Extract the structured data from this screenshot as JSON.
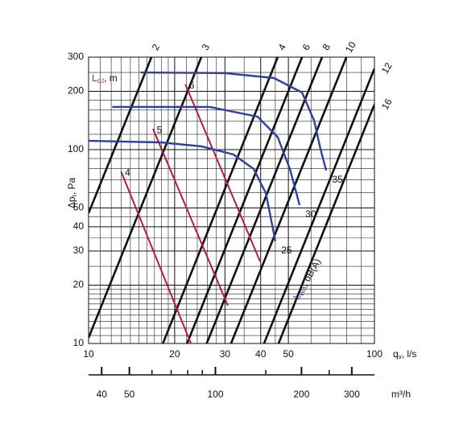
{
  "chart_data": {
    "type": "line",
    "log_x": true,
    "log_y": true,
    "grid": true,
    "xlim": [
      10,
      100
    ],
    "ylim": [
      10,
      300
    ],
    "xticks": [
      10,
      20,
      30,
      40,
      50,
      100
    ],
    "yticks": [
      10,
      20,
      30,
      40,
      50,
      100,
      200,
      300
    ],
    "xminor": [
      11,
      12,
      13,
      14,
      15,
      16,
      17,
      18,
      19,
      22,
      24,
      26,
      28,
      35,
      45,
      60,
      70,
      80,
      90
    ],
    "yminor": [
      11,
      12,
      13,
      14,
      15,
      16,
      17,
      18,
      19,
      25,
      35,
      45,
      60,
      70,
      80,
      90,
      120,
      140,
      160,
      180,
      250
    ],
    "x_label": {
      "main": "q",
      "sub": "v",
      "rest": ",  l/s"
    },
    "y_label": {
      "main": "Δp",
      "sub": "t",
      "rest": ", Pa"
    },
    "x2lim": [
      36,
      360
    ],
    "x2ticks": [
      40,
      50,
      100,
      200,
      300
    ],
    "x2minor": [
      60,
      70,
      80,
      90,
      150,
      250
    ],
    "x2_label": "m³/h",
    "lines": [
      {
        "name": "2",
        "color": "#111111",
        "x": [
          10,
          16.6
        ],
        "y": [
          47,
          300
        ]
      },
      {
        "name": "3",
        "color": "#111111",
        "x": [
          10,
          24.8
        ],
        "y": [
          10.7,
          300
        ]
      },
      {
        "name": "4",
        "color": "#111111",
        "x": [
          18.2,
          45.9
        ],
        "y": [
          10,
          300
        ]
      },
      {
        "name": "6",
        "color": "#111111",
        "x": [
          22.1,
          55.8
        ],
        "y": [
          10,
          300
        ]
      },
      {
        "name": "8",
        "color": "#111111",
        "x": [
          25.9,
          65.6
        ],
        "y": [
          10,
          300
        ]
      },
      {
        "name": "10",
        "color": "#111111",
        "x": [
          31.5,
          79.8
        ],
        "y": [
          10,
          300
        ]
      },
      {
        "name": "12",
        "color": "#111111",
        "x": [
          41.1,
          100
        ],
        "y": [
          10,
          262
        ]
      },
      {
        "name": "16",
        "color": "#111111",
        "x": [
          46.2,
          100
        ],
        "y": [
          10,
          171
        ]
      }
    ],
    "throw_label": {
      "main": "L",
      "sub": "c,t",
      "rest": ", m"
    },
    "throw": [
      {
        "name": "4",
        "color": "#b0203a",
        "x": [
          13.0,
          22.8
        ],
        "y": [
          77,
          10
        ]
      },
      {
        "name": "5",
        "color": "#b0203a",
        "x": [
          16.8,
          30.7
        ],
        "y": [
          128,
          15.7
        ]
      },
      {
        "name": "6",
        "color": "#b0203a",
        "x": [
          21.8,
          39.8
        ],
        "y": [
          217,
          26.5
        ]
      }
    ],
    "sound_label": {
      "main": "L",
      "sub": "WA",
      "rest": ", dB(A)"
    },
    "sound": [
      {
        "name": "25",
        "color": "#2e3f9e",
        "x": [
          10,
          17.9,
          24.8,
          32.1,
          37.8,
          41.7,
          43.9,
          45.0
        ],
        "y": [
          111,
          109,
          104,
          94.4,
          79.5,
          59.7,
          40.7,
          33.7
        ]
      },
      {
        "name": "30",
        "color": "#2e3f9e",
        "x": [
          12.1,
          26.5,
          39.0,
          45.9,
          50.6,
          54.7
        ],
        "y": [
          166,
          166,
          148,
          116,
          79.5,
          51.7
        ]
      },
      {
        "name": "35",
        "color": "#2e3f9e",
        "x": [
          15.2,
          30.1,
          44.5,
          55.8,
          61.5,
          64.7,
          67.8
        ],
        "y": [
          250,
          248,
          234,
          197,
          141,
          101,
          78
        ]
      }
    ]
  }
}
